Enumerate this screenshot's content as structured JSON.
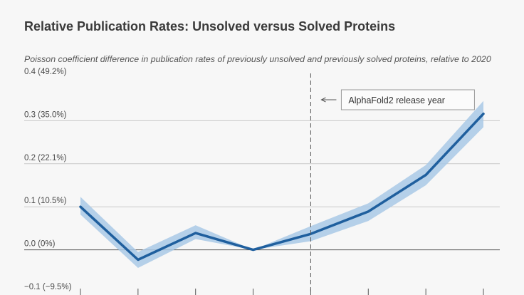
{
  "header": {
    "title": "Relative Publication Rates: Unsolved versus Solved Proteins",
    "subtitle": "Poisson coefficient difference in publication rates of previously unsolved and previously solved proteins, relative to 2020"
  },
  "chart_data": {
    "type": "line",
    "title": "Relative Publication Rates: Unsolved versus Solved Proteins",
    "subtitle": "Poisson coefficient difference in publication rates of previously unsolved and previously solved proteins, relative to 2020",
    "xlabel": "",
    "ylabel": "",
    "x": [
      0,
      1,
      2,
      3,
      4,
      5,
      6,
      7
    ],
    "series": [
      {
        "values": [
          0.1,
          -0.023,
          0.039,
          0.0,
          0.037,
          0.089,
          0.174,
          0.316
        ],
        "ci_lower": [
          0.082,
          -0.042,
          0.025,
          0.0,
          0.02,
          0.067,
          0.15,
          0.285
        ],
        "ci_upper": [
          0.123,
          -0.005,
          0.057,
          0.0,
          0.055,
          0.108,
          0.197,
          0.346
        ]
      }
    ],
    "yticks": [
      {
        "value": 0.4,
        "label": "0.4 (49.2%)"
      },
      {
        "value": 0.3,
        "label": "0.3 (35.0%)"
      },
      {
        "value": 0.2,
        "label": "0.2 (22.1%)"
      },
      {
        "value": 0.1,
        "label": "0.1 (10.5%)"
      },
      {
        "value": 0.0,
        "label": "0.0 (0%)"
      },
      {
        "value": -0.1,
        "label": "−0.1 (−9.5%)"
      }
    ],
    "ylim": [
      -0.1,
      0.4
    ],
    "xlim": [
      0,
      7
    ],
    "grid": true,
    "annotation": {
      "x": 4,
      "label": "AlphaFold2 release year"
    },
    "colors": {
      "line": "#1f5f9e",
      "band": "#a9c9e6",
      "grid": "#c9c9c9",
      "zero": "#555555",
      "vline": "#555555"
    }
  }
}
